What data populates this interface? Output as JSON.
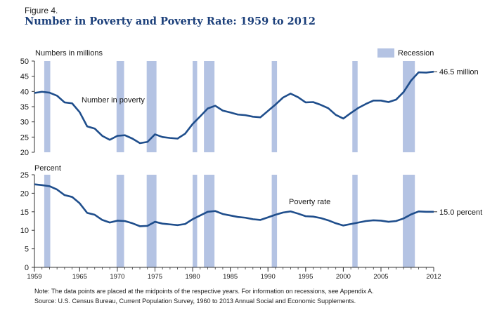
{
  "figure_label": "Figure 4.",
  "title": "Number in Poverty and Poverty Rate: 1959 to 2012",
  "notes": [
    "Note: The data points are placed at the midpoints of the respective years. For information on recessions, see Appendix A.",
    "Source: U.S. Census Bureau, Current Population Survey, 1960 to 2013 Annual Social and Economic Supplements."
  ],
  "colors": {
    "line": "#1f4e8c",
    "recession": "#b4c3e3",
    "axis": "#333333",
    "title": "#1b3f7a"
  },
  "chart_data": [
    {
      "type": "line",
      "ylabel": "Numbers in millions",
      "ylim": [
        20,
        50
      ],
      "yticks": [
        20,
        25,
        30,
        35,
        40,
        45,
        50
      ],
      "xlim": [
        1959,
        2012
      ],
      "legend": {
        "label": "Recession",
        "placement": "top-right"
      },
      "recessions": [
        [
          1960.3,
          1961.1
        ],
        [
          1969.9,
          1970.9
        ],
        [
          1973.9,
          1975.2
        ],
        [
          1980.0,
          1980.6
        ],
        [
          1981.5,
          1982.9
        ],
        [
          1990.5,
          1991.2
        ],
        [
          2001.2,
          2001.9
        ],
        [
          2007.9,
          2009.5
        ]
      ],
      "series": [
        {
          "name": "Number in poverty",
          "end_label": "46.5 million",
          "x": [
            1959,
            1960,
            1961,
            1962,
            1963,
            1964,
            1965,
            1966,
            1967,
            1968,
            1969,
            1970,
            1971,
            1972,
            1973,
            1974,
            1975,
            1976,
            1977,
            1978,
            1979,
            1980,
            1981,
            1982,
            1983,
            1984,
            1985,
            1986,
            1987,
            1988,
            1989,
            1990,
            1991,
            1992,
            1993,
            1994,
            1995,
            1996,
            1997,
            1998,
            1999,
            2000,
            2001,
            2002,
            2003,
            2004,
            2005,
            2006,
            2007,
            2008,
            2009,
            2010,
            2011,
            2012
          ],
          "values": [
            39.5,
            39.9,
            39.6,
            38.6,
            36.4,
            36.1,
            33.2,
            28.5,
            27.8,
            25.4,
            24.1,
            25.4,
            25.6,
            24.5,
            23.0,
            23.4,
            25.9,
            25.0,
            24.7,
            24.5,
            26.1,
            29.3,
            31.8,
            34.4,
            35.3,
            33.7,
            33.1,
            32.4,
            32.2,
            31.7,
            31.5,
            33.6,
            35.7,
            38.0,
            39.3,
            38.1,
            36.4,
            36.5,
            35.6,
            34.5,
            32.3,
            31.1,
            32.9,
            34.6,
            35.9,
            37.0,
            37.0,
            36.5,
            37.3,
            39.8,
            43.6,
            46.3,
            46.2,
            46.5
          ]
        }
      ]
    },
    {
      "type": "line",
      "ylabel": "Percent",
      "ylim": [
        0,
        25
      ],
      "yticks": [
        0,
        5,
        10,
        15,
        20,
        25
      ],
      "xlim": [
        1959,
        2012
      ],
      "xticks": [
        1959,
        1965,
        1970,
        1975,
        1980,
        1985,
        1990,
        1995,
        2000,
        2005,
        2012
      ],
      "recessions": [
        [
          1960.3,
          1961.1
        ],
        [
          1969.9,
          1970.9
        ],
        [
          1973.9,
          1975.2
        ],
        [
          1980.0,
          1980.6
        ],
        [
          1981.5,
          1982.9
        ],
        [
          1990.5,
          1991.2
        ],
        [
          2001.2,
          2001.9
        ],
        [
          2007.9,
          2009.5
        ]
      ],
      "series": [
        {
          "name": "Poverty rate",
          "end_label": "15.0 percent",
          "x": [
            1959,
            1960,
            1961,
            1962,
            1963,
            1964,
            1965,
            1966,
            1967,
            1968,
            1969,
            1970,
            1971,
            1972,
            1973,
            1974,
            1975,
            1976,
            1977,
            1978,
            1979,
            1980,
            1981,
            1982,
            1983,
            1984,
            1985,
            1986,
            1987,
            1988,
            1989,
            1990,
            1991,
            1992,
            1993,
            1994,
            1995,
            1996,
            1997,
            1998,
            1999,
            2000,
            2001,
            2002,
            2003,
            2004,
            2005,
            2006,
            2007,
            2008,
            2009,
            2010,
            2011,
            2012
          ],
          "values": [
            22.4,
            22.2,
            21.9,
            21.0,
            19.5,
            19.0,
            17.3,
            14.7,
            14.2,
            12.8,
            12.1,
            12.6,
            12.5,
            11.9,
            11.1,
            11.2,
            12.3,
            11.8,
            11.6,
            11.4,
            11.7,
            13.0,
            14.0,
            15.0,
            15.2,
            14.4,
            14.0,
            13.6,
            13.4,
            13.0,
            12.8,
            13.5,
            14.2,
            14.8,
            15.1,
            14.5,
            13.8,
            13.7,
            13.3,
            12.7,
            11.9,
            11.3,
            11.7,
            12.1,
            12.5,
            12.7,
            12.6,
            12.3,
            12.5,
            13.2,
            14.3,
            15.1,
            15.0,
            15.0
          ]
        }
      ]
    }
  ]
}
